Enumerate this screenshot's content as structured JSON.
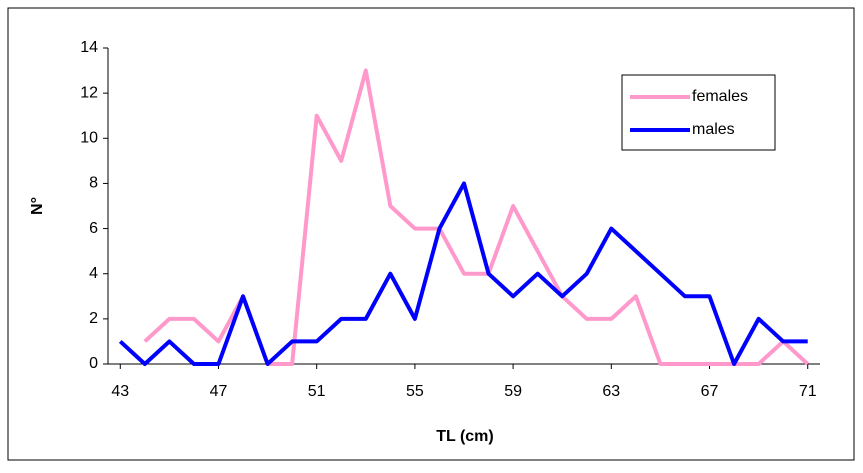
{
  "chart_data": {
    "type": "line",
    "x_label": "TL (cm)",
    "y_label": "N°",
    "x": [
      43,
      44,
      45,
      46,
      47,
      48,
      49,
      50,
      51,
      52,
      53,
      54,
      55,
      56,
      57,
      58,
      59,
      60,
      61,
      62,
      63,
      64,
      65,
      66,
      67,
      68,
      69,
      70,
      71
    ],
    "series": [
      {
        "name": "females",
        "color": "#ff99cc",
        "values": [
          null,
          1,
          2,
          2,
          1,
          3,
          0,
          0,
          11,
          9,
          13,
          7,
          6,
          6,
          4,
          4,
          7,
          5,
          3,
          2,
          2,
          3,
          0,
          0,
          0,
          0,
          0,
          1,
          0
        ]
      },
      {
        "name": "males",
        "color": "#0000ff",
        "values": [
          1,
          0,
          1,
          0,
          0,
          3,
          0,
          1,
          1,
          2,
          2,
          4,
          2,
          6,
          8,
          4,
          3,
          4,
          3,
          4,
          6,
          5,
          4,
          3,
          3,
          0,
          2,
          1,
          1
        ]
      }
    ],
    "xlim": [
      42.5,
      71.5
    ],
    "xticks": [
      43,
      47,
      51,
      55,
      59,
      63,
      67,
      71
    ],
    "ylim": [
      0,
      14
    ],
    "yticks": [
      0,
      2,
      4,
      6,
      8,
      10,
      12,
      14
    ],
    "legend": "upper right"
  }
}
